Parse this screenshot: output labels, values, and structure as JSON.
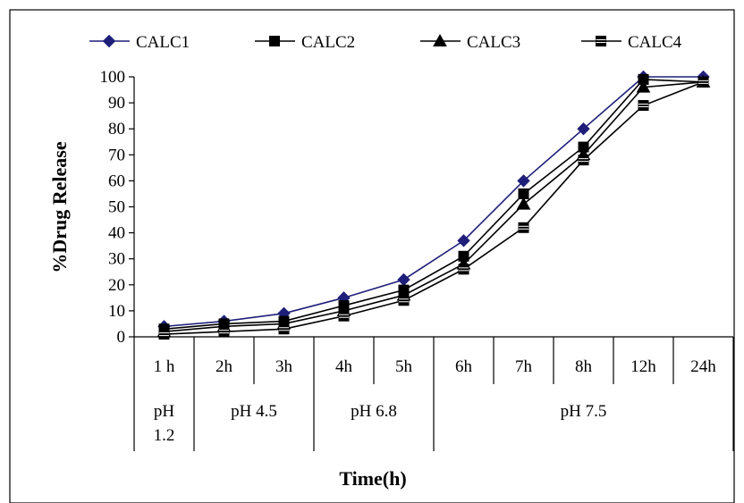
{
  "chart_data": {
    "type": "line",
    "title": "",
    "xlabel": "Time(h)",
    "ylabel": "%Drug Release",
    "ylim": [
      0,
      100
    ],
    "y_ticks": [
      0,
      10,
      20,
      30,
      40,
      50,
      60,
      70,
      80,
      90,
      100
    ],
    "grid": false,
    "legend_position": "top",
    "categories": [
      "1 h",
      "2h",
      "3h",
      "4h",
      "5h",
      "6h",
      "7h",
      "8h",
      "12h",
      "24h"
    ],
    "category_groups": [
      {
        "label": "pH\n1.2",
        "span": 1
      },
      {
        "label": "pH 4.5",
        "span": 2
      },
      {
        "label": "pH 6.8",
        "span": 2
      },
      {
        "label": "pH 7.5",
        "span": 5
      }
    ],
    "series": [
      {
        "name": "CALC1",
        "marker": "diamond",
        "color": "#1f1f7a",
        "values": [
          4,
          6,
          9,
          15,
          22,
          37,
          60,
          80,
          100,
          100
        ]
      },
      {
        "name": "CALC2",
        "marker": "square",
        "color": "#000000",
        "values": [
          3,
          5,
          6,
          12,
          18,
          31,
          55,
          73,
          99,
          98
        ]
      },
      {
        "name": "CALC3",
        "marker": "triangle",
        "color": "#000000",
        "values": [
          2,
          4,
          5,
          10,
          16,
          28,
          51,
          70,
          96,
          98
        ]
      },
      {
        "name": "CALC4",
        "marker": "hourglass",
        "color": "#000000",
        "values": [
          1,
          2,
          3,
          8,
          14,
          26,
          42,
          68,
          89,
          98
        ]
      }
    ]
  }
}
